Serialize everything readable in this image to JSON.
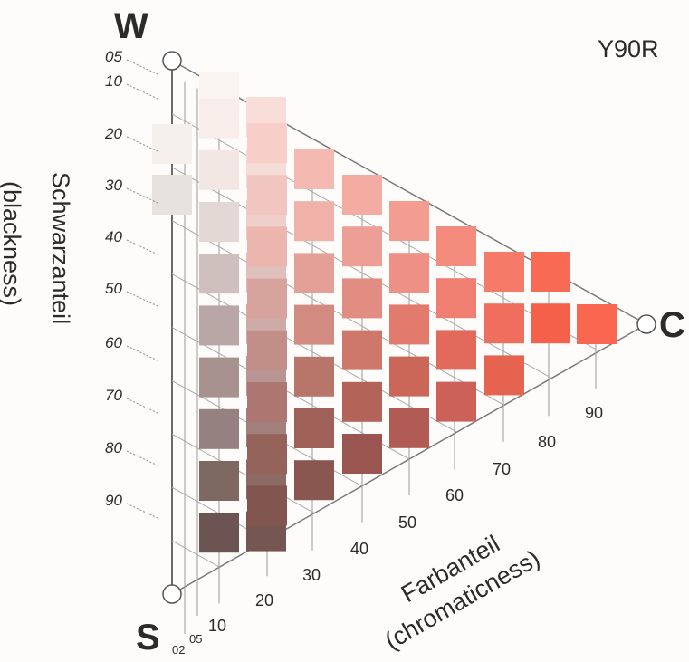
{
  "notation": "Y90R",
  "corners": {
    "white": "W",
    "black": "S",
    "chromatic": "C"
  },
  "blackness_axis": {
    "title": "Schwarzanteil",
    "subtitle": "(blackness)",
    "ticks": [
      "05",
      "10",
      "20",
      "30",
      "40",
      "50",
      "60",
      "70",
      "80",
      "90"
    ]
  },
  "chromaticness_axis": {
    "title": "Farbanteil",
    "subtitle": "(chromaticness)",
    "ticks": [
      "02",
      "05",
      "10",
      "20",
      "30",
      "40",
      "50",
      "60",
      "70",
      "80",
      "90"
    ]
  },
  "swatches": [
    {
      "c": "02",
      "s": "20",
      "color": "#f5f0ec"
    },
    {
      "c": "02",
      "s": "30",
      "color": "#e8e2de"
    },
    {
      "c": "05",
      "s": "05",
      "color": "#fbf5f1"
    },
    {
      "c": "05",
      "s": "10",
      "color": "#f9ede9"
    },
    {
      "c": "05",
      "s": "20",
      "color": "#f3e7e3"
    },
    {
      "c": "05",
      "s": "30",
      "color": "#e4d8d5"
    },
    {
      "c": "05",
      "s": "40",
      "color": "#cfc0bd"
    },
    {
      "c": "05",
      "s": "50",
      "color": "#b9a7a5"
    },
    {
      "c": "05",
      "s": "60",
      "color": "#a89290"
    },
    {
      "c": "05",
      "s": "70",
      "color": "#948180"
    },
    {
      "c": "05",
      "s": "80",
      "color": "#7e6862"
    },
    {
      "c": "05",
      "s": "90",
      "color": "#6b5451"
    },
    {
      "c": "10",
      "s": "05",
      "color": "#f9ddd8"
    },
    {
      "c": "10",
      "s": "10",
      "color": "#f5dcd7"
    },
    {
      "c": "10",
      "s": "20",
      "color": "#efcfca"
    },
    {
      "c": "10",
      "s": "30",
      "color": "#e0c0bc"
    },
    {
      "c": "10",
      "s": "40",
      "color": "#cdaba7"
    },
    {
      "c": "10",
      "s": "50",
      "color": "#b89592"
    },
    {
      "c": "10",
      "s": "60",
      "color": "#a2807b"
    },
    {
      "c": "10",
      "s": "70",
      "color": "#8d6a63"
    },
    {
      "c": "10",
      "s": "80",
      "color": "#765650"
    },
    {
      "c": "20",
      "s": "05",
      "color": "#f7cec8"
    },
    {
      "c": "20",
      "s": "10",
      "color": "#f2c6c0"
    },
    {
      "c": "20",
      "s": "20",
      "color": "#eab6ae"
    },
    {
      "c": "20",
      "s": "30",
      "color": "#d7a39d"
    },
    {
      "c": "20",
      "s": "40",
      "color": "#c28e88"
    },
    {
      "c": "20",
      "s": "50",
      "color": "#ab7770"
    },
    {
      "c": "20",
      "s": "60",
      "color": "#94635a"
    },
    {
      "c": "20",
      "s": "70",
      "color": "#80564e"
    },
    {
      "c": "30",
      "s": "05",
      "color": "#f4bab2"
    },
    {
      "c": "30",
      "s": "10",
      "color": "#efb1a8"
    },
    {
      "c": "30",
      "s": "20",
      "color": "#e49f96"
    },
    {
      "c": "30",
      "s": "30",
      "color": "#d18b81"
    },
    {
      "c": "30",
      "s": "40",
      "color": "#b8766b"
    },
    {
      "c": "30",
      "s": "50",
      "color": "#9e6057"
    },
    {
      "c": "30",
      "s": "60",
      "color": "#8a5650"
    },
    {
      "c": "40",
      "s": "05",
      "color": "#f3aba2"
    },
    {
      "c": "40",
      "s": "10",
      "color": "#ee9f95"
    },
    {
      "c": "40",
      "s": "20",
      "color": "#e28d81"
    },
    {
      "c": "40",
      "s": "30",
      "color": "#cd786b"
    },
    {
      "c": "40",
      "s": "40",
      "color": "#b36357"
    },
    {
      "c": "40",
      "s": "50",
      "color": "#9a5550"
    },
    {
      "c": "50",
      "s": "05",
      "color": "#f39d92"
    },
    {
      "c": "50",
      "s": "10",
      "color": "#ee9085"
    },
    {
      "c": "50",
      "s": "20",
      "color": "#e27b6e"
    },
    {
      "c": "50",
      "s": "30",
      "color": "#ca6759"
    },
    {
      "c": "50",
      "s": "40",
      "color": "#b05c55"
    },
    {
      "c": "60",
      "s": "05",
      "color": "#f48c7e"
    },
    {
      "c": "60",
      "s": "10",
      "color": "#ef7f70"
    },
    {
      "c": "60",
      "s": "20",
      "color": "#e26a5a"
    },
    {
      "c": "60",
      "s": "30",
      "color": "#cc615a"
    },
    {
      "c": "70",
      "s": "05",
      "color": "#f67a68"
    },
    {
      "c": "70",
      "s": "10",
      "color": "#f06e5d"
    },
    {
      "c": "70",
      "s": "20",
      "color": "#e6634f"
    },
    {
      "c": "80",
      "s": "05",
      "color": "#f86a53"
    },
    {
      "c": "80",
      "s": "10",
      "color": "#f5604a"
    },
    {
      "c": "90",
      "s": "05",
      "color": "#fa6650"
    }
  ]
}
